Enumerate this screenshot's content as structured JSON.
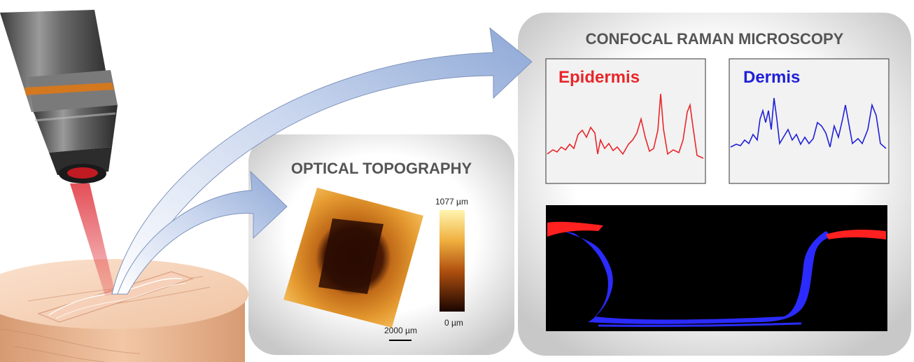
{
  "topography": {
    "title": "OPTICAL TOPOGRAPHY",
    "colorbar_max": "1077 µm",
    "colorbar_min": "0 µm",
    "scalebar": "2000 µm"
  },
  "raman": {
    "title": "CONFOCAL RAMAN MICROSCOPY",
    "epidermis": {
      "label": "Epidermis",
      "color": "#e8262a"
    },
    "dermis": {
      "label": "Dermis",
      "color": "#2020d8"
    },
    "map_colors": {
      "epidermis": "#ff2020",
      "dermis": "#2b2bff",
      "background": "#000000"
    }
  },
  "icons": [
    "microscope-objective-icon",
    "laser-beam-icon",
    "skin-sample-icon",
    "arrow-icon"
  ]
}
